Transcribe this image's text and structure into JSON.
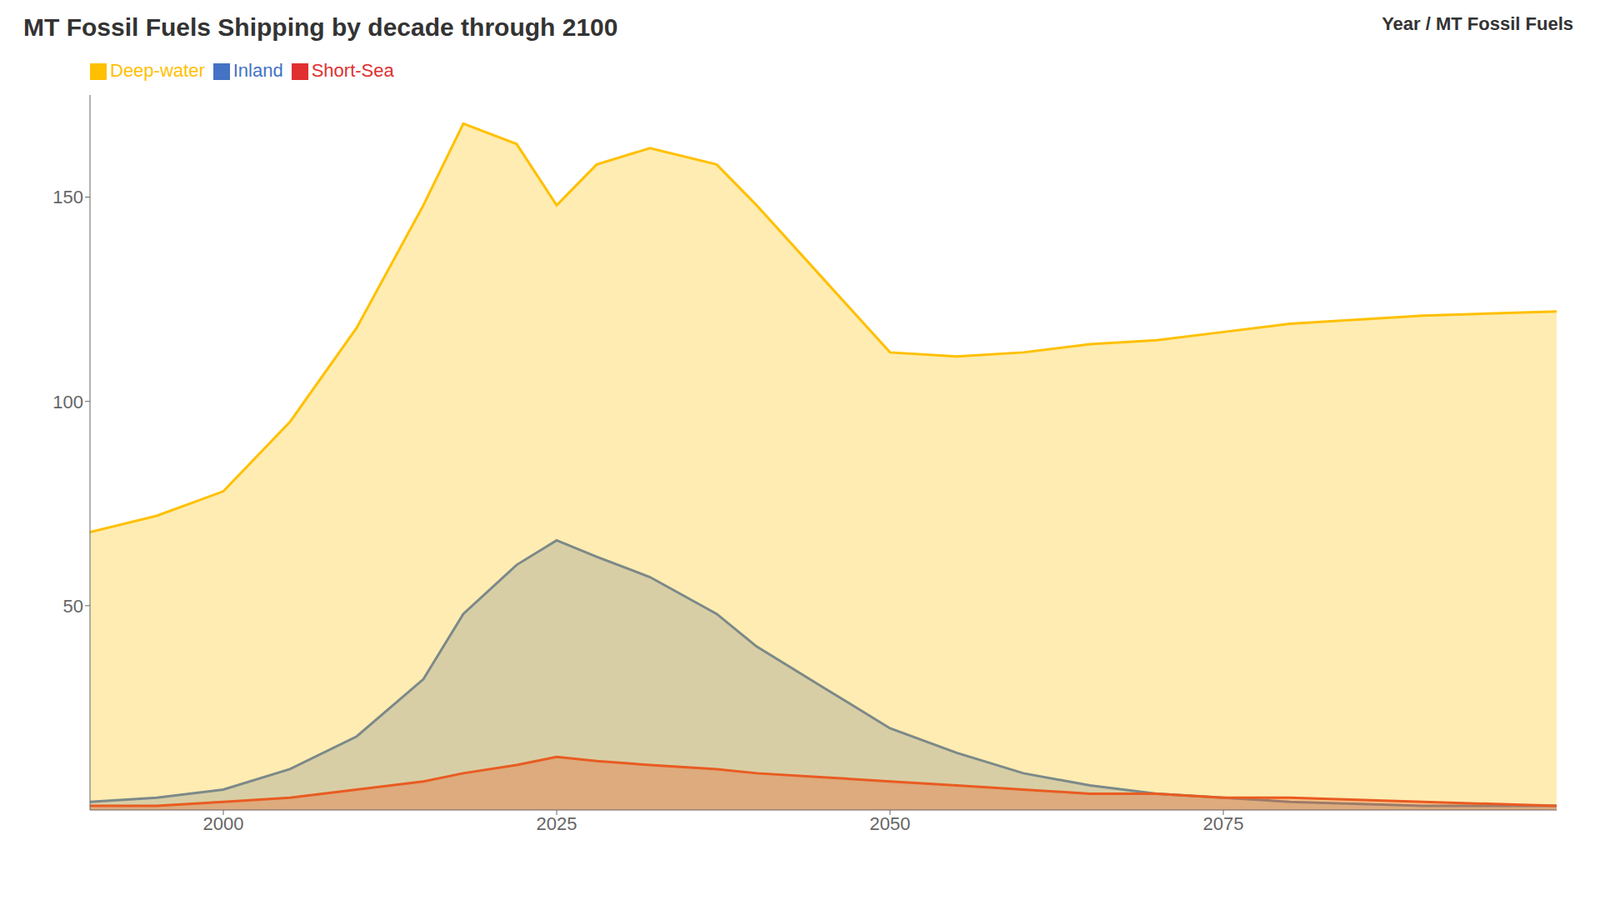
{
  "chart_data": {
    "type": "area",
    "title": "MT Fossil Fuels Shipping by decade through 2100",
    "subtitle": "Year / MT Fossil Fuels",
    "x": [
      1990,
      1995,
      2000,
      2005,
      2010,
      2015,
      2018,
      2022,
      2025,
      2028,
      2032,
      2037,
      2040,
      2045,
      2050,
      2055,
      2060,
      2065,
      2070,
      2075,
      2080,
      2090,
      2100
    ],
    "series": [
      {
        "name": "Inland",
        "color": "#4472c4",
        "values": [
          2,
          3,
          5,
          10,
          18,
          32,
          48,
          60,
          66,
          62,
          57,
          48,
          40,
          30,
          20,
          14,
          9,
          6,
          4,
          3,
          2,
          1,
          1
        ]
      },
      {
        "name": "Short-Sea",
        "color": "#e03030",
        "values": [
          1,
          1,
          2,
          3,
          5,
          7,
          9,
          11,
          13,
          12,
          11,
          10,
          9,
          8,
          7,
          6,
          5,
          4,
          4,
          3,
          3,
          2,
          1
        ]
      },
      {
        "name": "Deep-water",
        "color": "#ffc000",
        "values": [
          68,
          72,
          78,
          95,
          118,
          148,
          168,
          163,
          148,
          158,
          162,
          158,
          148,
          130,
          112,
          111,
          112,
          114,
          115,
          117,
          119,
          121,
          122
        ]
      }
    ],
    "xlim": [
      1990,
      2100
    ],
    "ylim": [
      0,
      175
    ],
    "xticks": [
      2000,
      2025,
      2050,
      2075
    ],
    "yticks": [
      50,
      100,
      150
    ],
    "grid": false,
    "legend": "upper left"
  }
}
